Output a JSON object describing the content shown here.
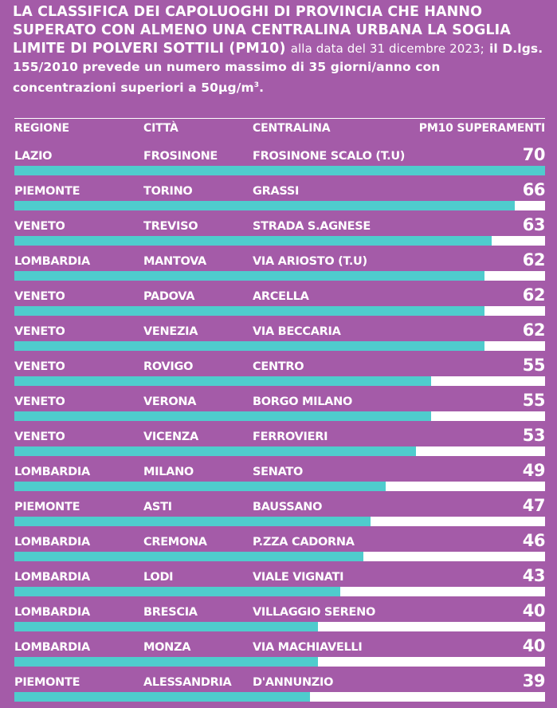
{
  "header": {
    "title_bold": "LA CLASSIFICA DEI CAPOLUOGHI DI PROVINCIA CHE HANNO SUPERATO CON ALMENO UNA CENTRALINA URBANA LA SOGLIA LIMITE DI POLVERI SOTTILI (PM10)",
    "title_date": "alla data del 31 dicembre 2023;",
    "note": "il D.lgs. 155/2010 prevede un numero massimo di 35 giorni/anno con concentrazioni superiori a 50µg/m",
    "note_sup": "3",
    "note_end": "."
  },
  "columns": {
    "regione": "REGIONE",
    "citta": "CITTÀ",
    "centralina": "CENTRALINA",
    "pm10": "PM10 SUPERAMENTI"
  },
  "colors": {
    "background": "#a45ba8",
    "bar": "#4fcccd",
    "track": "#ffffff",
    "text": "#ffffff"
  },
  "chart_data": {
    "type": "bar",
    "orientation": "horizontal",
    "xlim": [
      0,
      70
    ],
    "rows": [
      {
        "regione": "LAZIO",
        "citta": "FROSINONE",
        "centralina": "FROSINONE SCALO (T.U)",
        "value": 70
      },
      {
        "regione": "PIEMONTE",
        "citta": "TORINO",
        "centralina": "GRASSI",
        "value": 66
      },
      {
        "regione": "VENETO",
        "citta": "TREVISO",
        "centralina": "STRADA S.AGNESE",
        "value": 63
      },
      {
        "regione": "LOMBARDIA",
        "citta": "MANTOVA",
        "centralina": "VIA ARIOSTO (T.U)",
        "value": 62
      },
      {
        "regione": "VENETO",
        "citta": "PADOVA",
        "centralina": "ARCELLA",
        "value": 62
      },
      {
        "regione": "VENETO",
        "citta": "VENEZIA",
        "centralina": "VIA BECCARIA",
        "value": 62
      },
      {
        "regione": "VENETO",
        "citta": "ROVIGO",
        "centralina": "CENTRO",
        "value": 55
      },
      {
        "regione": "VENETO",
        "citta": "VERONA",
        "centralina": "BORGO MILANO",
        "value": 55
      },
      {
        "regione": "VENETO",
        "citta": "VICENZA",
        "centralina": "FERROVIERI",
        "value": 53
      },
      {
        "regione": "LOMBARDIA",
        "citta": "MILANO",
        "centralina": "SENATO",
        "value": 49
      },
      {
        "regione": "PIEMONTE",
        "citta": "ASTI",
        "centralina": "BAUSSANO",
        "value": 47
      },
      {
        "regione": "LOMBARDIA",
        "citta": "CREMONA",
        "centralina": "P.ZZA CADORNA",
        "value": 46
      },
      {
        "regione": "LOMBARDIA",
        "citta": "LODI",
        "centralina": "VIALE VIGNATI",
        "value": 43
      },
      {
        "regione": "LOMBARDIA",
        "citta": "BRESCIA",
        "centralina": "VILLAGGIO SERENO",
        "value": 40
      },
      {
        "regione": "LOMBARDIA",
        "citta": "MONZA",
        "centralina": "VIA MACHIAVELLI",
        "value": 40
      },
      {
        "regione": "PIEMONTE",
        "citta": "ALESSANDRIA",
        "centralina": "D'ANNUNZIO",
        "value": 39
      }
    ]
  }
}
